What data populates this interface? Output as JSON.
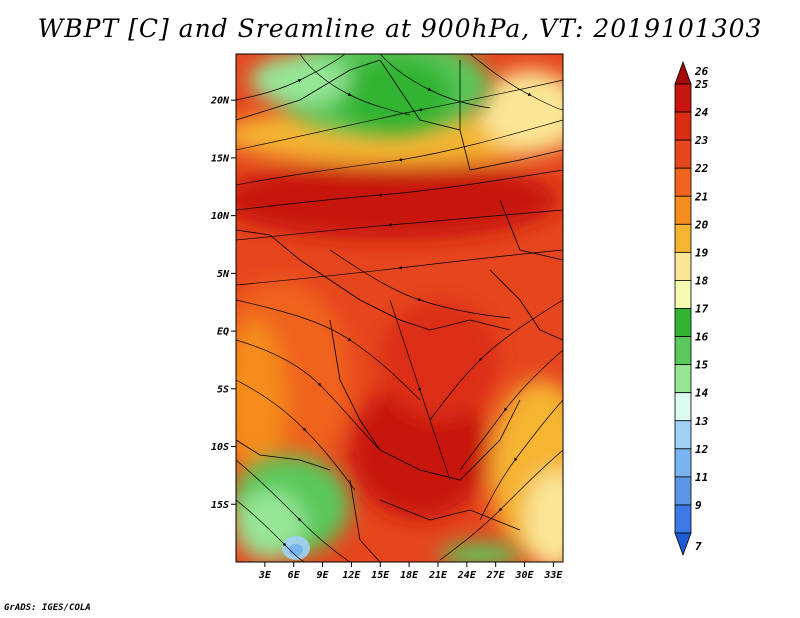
{
  "title": "WBPT [C] and Sreamline at 900hPa, VT: 2019101303",
  "footer": "GrADS: IGES/COLA",
  "map": {
    "lat_ticks": [
      "20N",
      "15N",
      "10N",
      "5N",
      "EQ",
      "5S",
      "10S",
      "15S"
    ],
    "lon_ticks": [
      "3E",
      "6E",
      "9E",
      "12E",
      "15E",
      "18E",
      "21E",
      "24E",
      "27E",
      "30E",
      "33E"
    ],
    "lat_range": [
      -20,
      24
    ],
    "lon_range": [
      0,
      34
    ],
    "variable": "Wet-bulb potential temperature (C) with 900hPa streamlines"
  },
  "colorbar": {
    "labels": [
      "26",
      "25",
      "24",
      "23",
      "22",
      "21",
      "20",
      "19",
      "18",
      "17",
      "16",
      "15",
      "14",
      "13",
      "12",
      "11",
      "9",
      "7"
    ],
    "colors": [
      "#a50a0a",
      "#c8140f",
      "#dc2d14",
      "#e6461e",
      "#f0641e",
      "#f58c1e",
      "#f5b432",
      "#fae696",
      "#f5faaf",
      "#32b432",
      "#5ac85a",
      "#96e696",
      "#dcfaf0",
      "#a0d2f5",
      "#78b4f0",
      "#5a96e6",
      "#3c78e6",
      "#1e5ad2"
    ]
  }
}
